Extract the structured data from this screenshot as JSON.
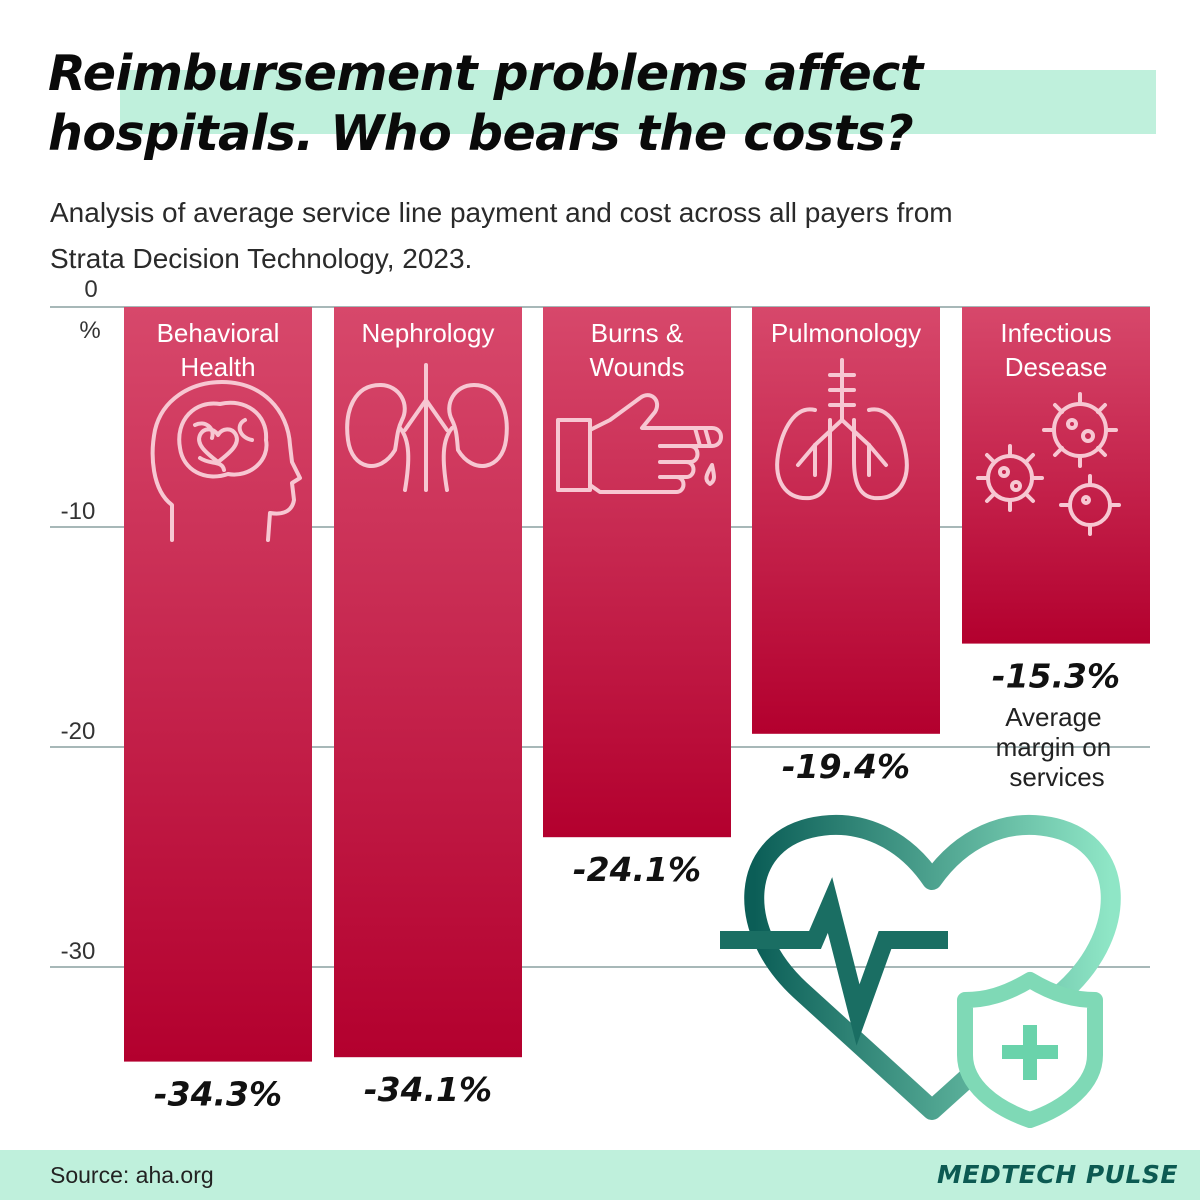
{
  "header": {
    "title_lines": [
      "Reimbursement problems affect",
      "hospitals. Who bears the costs?"
    ],
    "subtitle_lines": [
      "Analysis of average service line payment and cost across all payers from",
      "Strata Decision Technology, 2023."
    ]
  },
  "chart_data": {
    "type": "bar",
    "categories": [
      [
        "Behavioral",
        "Health"
      ],
      [
        "Nephrology"
      ],
      [
        "Burns &",
        "Wounds"
      ],
      [
        "Pulmonology"
      ],
      [
        "Infectious",
        "Desease"
      ]
    ],
    "values": [
      -34.3,
      -34.1,
      -24.1,
      -19.4,
      -15.3
    ],
    "value_labels": [
      "-34.3%",
      "-34.1%",
      "-24.1%",
      "-19.4%",
      "-15.3%"
    ],
    "ylabel": "%",
    "yticks": [
      0,
      -10,
      -20,
      -30
    ],
    "ytick_labels": [
      "0",
      "-10",
      "-20",
      "-30"
    ],
    "ylim": [
      -34.3,
      0
    ],
    "annotation_lines": [
      "Average",
      "margin on",
      "services"
    ],
    "colors": {
      "bar_top": "#d7486b",
      "bar_bottom": "#b3002e",
      "gridline": "#8aa0a0"
    },
    "icons": [
      "brain-head-icon",
      "kidneys-icon",
      "burned-hand-icon",
      "lungs-icon",
      "virus-icon"
    ]
  },
  "decoration": {
    "icon": "heart-pulse-shield-icon",
    "colors": [
      "#0b5e57",
      "#8fe6c6"
    ]
  },
  "footer": {
    "source": "Source: aha.org",
    "brand": "MEDTECH PULSE"
  }
}
